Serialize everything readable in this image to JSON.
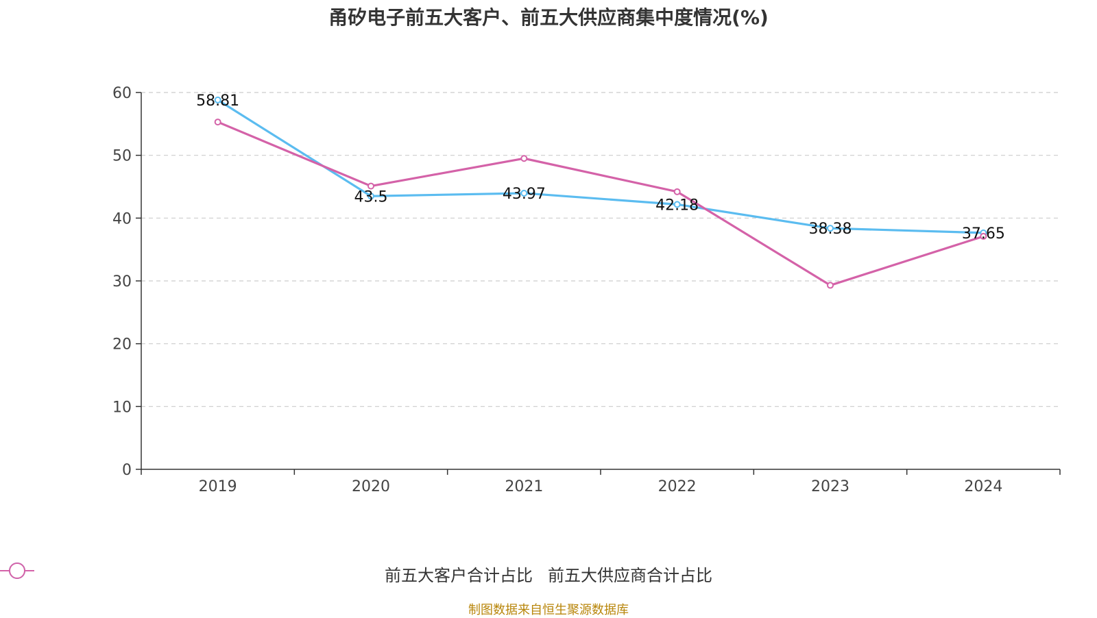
{
  "title": "甬矽电子前五大客户、前五大供应商集中度情况(%)",
  "source": "制图数据来自恒生聚源数据库",
  "colors": {
    "customers": "#5bbcf0",
    "suppliers": "#d462a8",
    "axis": "#333333",
    "grid": "#cccccc"
  },
  "legend": [
    {
      "label": "前五大客户合计占比",
      "color": "#5bbcf0"
    },
    {
      "label": "前五大供应商合计占比",
      "color": "#d462a8"
    }
  ],
  "chart_data": {
    "type": "line",
    "title": "甬矽电子前五大客户、前五大供应商集中度情况(%)",
    "categories": [
      "2019",
      "2020",
      "2021",
      "2022",
      "2023",
      "2024"
    ],
    "ylim": [
      0,
      60
    ],
    "yticks": [
      "0",
      "10",
      "20",
      "30",
      "40",
      "50",
      "60"
    ],
    "grid": true,
    "legend_position": "bottom",
    "series": [
      {
        "name": "前五大客户合计占比",
        "values": [
          58.81,
          43.5,
          43.97,
          42.18,
          38.38,
          37.65
        ],
        "labels": [
          "58.81",
          "43.5",
          "43.97",
          "42.18",
          "38.38",
          "37.65"
        ]
      },
      {
        "name": "前五大供应商合计占比",
        "values": [
          55.3,
          45.1,
          49.5,
          44.2,
          29.3,
          37.1
        ]
      }
    ]
  }
}
